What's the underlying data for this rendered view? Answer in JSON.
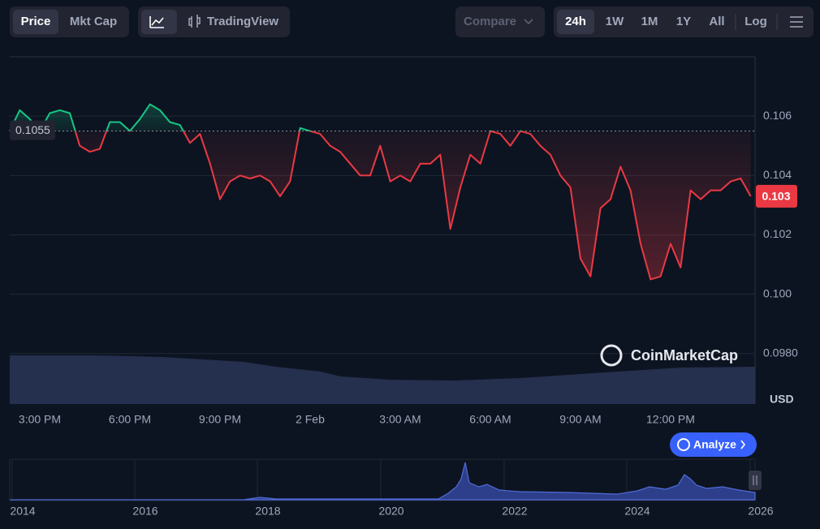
{
  "toolbar": {
    "price": "Price",
    "mkt_cap": "Mkt Cap",
    "trading_view": "TradingView",
    "compare": "Compare",
    "ranges": [
      "24h",
      "1W",
      "1M",
      "1Y",
      "All"
    ],
    "log": "Log"
  },
  "watermark": "CoinMarketCap",
  "analyze": "Analyze",
  "navigator": {
    "labels": [
      "2014",
      "2016",
      "2018",
      "2020",
      "2022",
      "2024",
      "2026"
    ]
  },
  "chart_data": {
    "type": "line",
    "categories": [
      null,
      null,
      null,
      "3:00 PM",
      null,
      null,
      null,
      null,
      null,
      null,
      null,
      null,
      "6:00 PM",
      null,
      null,
      null,
      null,
      null,
      null,
      null,
      null,
      "9:00 PM",
      null,
      null,
      null,
      null,
      null,
      null,
      null,
      null,
      "2 Feb",
      null,
      null,
      null,
      null,
      null,
      null,
      null,
      null,
      "3:00 AM",
      null,
      null,
      null,
      null,
      null,
      null,
      null,
      null,
      "6:00 AM",
      null,
      null,
      null,
      null,
      null,
      null,
      null,
      null,
      "9:00 AM",
      null,
      null,
      null,
      null,
      null,
      null,
      null,
      null,
      "12:00 PM",
      null,
      null,
      null,
      null,
      null,
      null,
      null,
      null
    ],
    "values": [
      0.1055,
      0.1062,
      0.1059,
      0.1055,
      0.1061,
      0.1062,
      0.1061,
      0.105,
      0.1048,
      0.1049,
      0.1058,
      0.1058,
      0.1055,
      0.1059,
      0.1064,
      0.1062,
      0.1058,
      0.1057,
      0.1051,
      0.1054,
      0.1044,
      0.1032,
      0.1038,
      0.104,
      0.1039,
      0.104,
      0.1038,
      0.1033,
      0.1038,
      0.1056,
      0.1055,
      0.1054,
      0.105,
      0.1048,
      0.1044,
      0.104,
      0.104,
      0.105,
      0.1038,
      0.104,
      0.1038,
      0.1044,
      0.1044,
      0.1047,
      0.1022,
      0.1036,
      0.1047,
      0.1044,
      0.1055,
      0.1054,
      0.105,
      0.1055,
      0.1054,
      0.105,
      0.1047,
      0.104,
      0.1036,
      0.1012,
      0.1006,
      0.1029,
      0.1032,
      0.1043,
      0.1035,
      0.1017,
      0.1005,
      0.1006,
      0.1017,
      0.1009,
      0.1035,
      0.1032,
      0.1035,
      0.1035,
      0.1038,
      0.1039,
      0.1033
    ],
    "up_color": "#16c784",
    "down_color": "#ea3943",
    "baseline": 0.1055,
    "current_price": {
      "value": 0.1033,
      "label": "0.103"
    },
    "ylim": [
      0.0963,
      0.108
    ],
    "yticks": [
      {
        "value": 0.098,
        "label": "0.0980"
      },
      {
        "value": 0.1,
        "label": "0.100"
      },
      0.102,
      0.104,
      0.106
    ],
    "y_unit": "USD",
    "grid": true
  }
}
